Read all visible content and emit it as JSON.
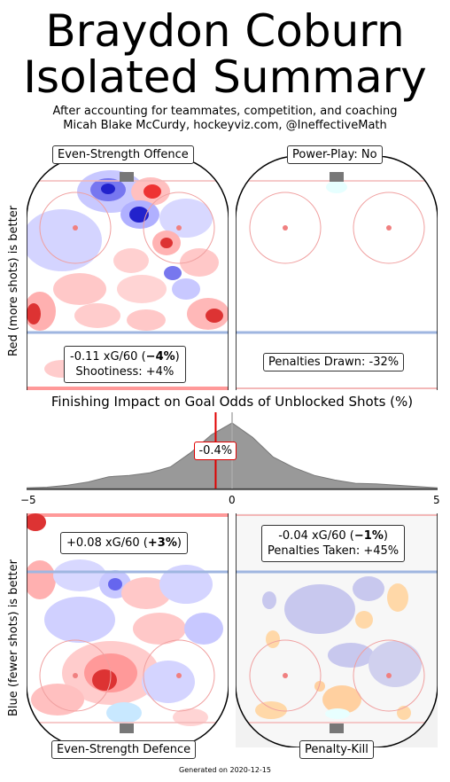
{
  "header": {
    "title_line1": "Braydon Coburn",
    "title_line2": "Isolated Summary",
    "subtitle_line1": "After accounting for teammates, competition, and coaching",
    "subtitle_line2": "Micah Blake McCurdy, hockeyviz.com, @IneffectiveMath"
  },
  "axis_labels": {
    "top": "Red (more shots) is better",
    "bottom": "Blue (fewer shots) is better"
  },
  "panels": {
    "es_offence": {
      "label": "Even-Strength Offence",
      "stat_line1_prefix": "-0.11 xG/60 (",
      "stat_line1_bold": "−4%",
      "stat_line1_suffix": ")",
      "stat_line2": "Shootiness: +4%"
    },
    "power_play": {
      "label": "Power-Play: No",
      "stat_line1": "Penalties Drawn: -32%"
    },
    "es_defence": {
      "label": "Even-Strength Defence",
      "stat_line1_prefix": "+0.08 xG/60 (",
      "stat_line1_bold": "+3%",
      "stat_line1_suffix": ")"
    },
    "penalty_kill": {
      "label": "Penalty-Kill",
      "stat_line1_prefix": "-0.04 xG/60 (",
      "stat_line1_bold": "−1%",
      "stat_line1_suffix": ")",
      "stat_line2": "Penalties Taken: +45%"
    }
  },
  "chart_data": {
    "type": "area",
    "title": "Finishing Impact on Goal Odds of Unblocked Shots (%)",
    "x_ticks": [
      "−5",
      "0",
      "5"
    ],
    "xlim": [
      -5,
      5
    ],
    "player_value": -0.4,
    "player_value_label": "-0.4%",
    "distribution": {
      "x": [
        -5,
        -4.5,
        -4,
        -3.5,
        -3,
        -2.5,
        -2,
        -1.5,
        -1,
        -0.5,
        0,
        0.5,
        1,
        1.5,
        2,
        2.5,
        3,
        3.5,
        4,
        4.5,
        5
      ],
      "density": [
        0.01,
        0.02,
        0.05,
        0.1,
        0.18,
        0.2,
        0.24,
        0.33,
        0.55,
        0.82,
        1.0,
        0.78,
        0.48,
        0.32,
        0.2,
        0.13,
        0.08,
        0.07,
        0.05,
        0.03,
        0.01
      ]
    },
    "colors": {
      "fill": "#999999",
      "marker": "#e00000",
      "zero_line": "#aaaaaa"
    }
  },
  "footer": {
    "generated": "Generated on 2020-12-15"
  }
}
